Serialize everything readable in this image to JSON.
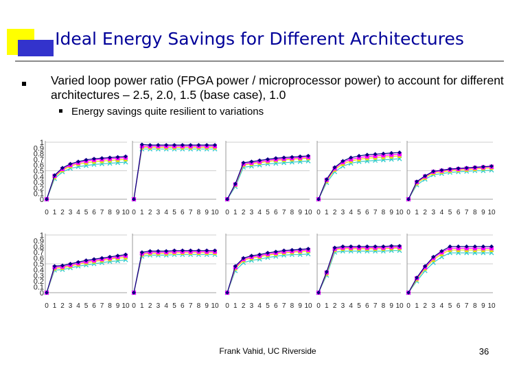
{
  "slide": {
    "title": "Ideal Energy Savings for Different Architectures",
    "bullet1": "Varied loop power ratio (FPGA power / microprocessor power) to account for different architectures – 2.5, 2.0, 1.5 (base case), 1.0",
    "bullet2": "Energy savings quite resilient to variations",
    "footer": "Frank Vahid, UC Riverside",
    "page_number": "36"
  },
  "colors": {
    "title": "#000099",
    "logo_yellow": "#ffff00",
    "logo_blue": "#3333cc",
    "series": [
      "#000080",
      "#ff00ff",
      "#f0e000",
      "#33cccc"
    ],
    "gridline": "#a0a0a0",
    "axis": "#808080"
  },
  "chart_data": [
    {
      "type": "line",
      "panel": "top-1",
      "categories": [
        "0",
        "1",
        "2",
        "3",
        "4",
        "5",
        "6",
        "7",
        "8",
        "9",
        "10"
      ],
      "ylim": [
        0,
        1
      ],
      "ytick_labels": [
        "0",
        "0.1",
        "0.2",
        "0.3",
        "0.4",
        "0.5",
        "0.6",
        "0.7",
        "0.8",
        "0.9",
        "1"
      ],
      "series": [
        {
          "name": "2.5",
          "values": [
            0,
            0.42,
            0.55,
            0.62,
            0.66,
            0.69,
            0.71,
            0.72,
            0.73,
            0.74,
            0.75
          ]
        },
        {
          "name": "2.0",
          "values": [
            0,
            0.41,
            0.53,
            0.6,
            0.64,
            0.67,
            0.69,
            0.7,
            0.71,
            0.72,
            0.73
          ]
        },
        {
          "name": "1.5",
          "values": [
            0,
            0.39,
            0.51,
            0.58,
            0.62,
            0.64,
            0.66,
            0.67,
            0.68,
            0.69,
            0.7
          ]
        },
        {
          "name": "1.0",
          "values": [
            0,
            0.36,
            0.48,
            0.54,
            0.57,
            0.59,
            0.61,
            0.62,
            0.63,
            0.64,
            0.65
          ]
        }
      ]
    },
    {
      "type": "line",
      "panel": "top-2",
      "categories": [
        "0",
        "1",
        "2",
        "3",
        "4",
        "5",
        "6",
        "7",
        "8",
        "9",
        "10"
      ],
      "series": [
        {
          "name": "2.5",
          "values": [
            0,
            0.96,
            0.95,
            0.95,
            0.95,
            0.95,
            0.95,
            0.95,
            0.95,
            0.95,
            0.95
          ]
        },
        {
          "name": "2.0",
          "values": [
            0,
            0.93,
            0.93,
            0.93,
            0.93,
            0.93,
            0.93,
            0.93,
            0.93,
            0.93,
            0.93
          ]
        },
        {
          "name": "1.5",
          "values": [
            0,
            0.91,
            0.91,
            0.91,
            0.91,
            0.91,
            0.91,
            0.91,
            0.91,
            0.91,
            0.91
          ]
        },
        {
          "name": "1.0",
          "values": [
            0,
            0.88,
            0.88,
            0.88,
            0.88,
            0.88,
            0.88,
            0.88,
            0.88,
            0.88,
            0.88
          ]
        }
      ]
    },
    {
      "type": "line",
      "panel": "top-3",
      "categories": [
        "0",
        "1",
        "2",
        "3",
        "4",
        "5",
        "6",
        "7",
        "8",
        "9",
        "10"
      ],
      "series": [
        {
          "name": "2.5",
          "values": [
            0,
            0.27,
            0.64,
            0.66,
            0.68,
            0.7,
            0.72,
            0.73,
            0.74,
            0.75,
            0.76
          ]
        },
        {
          "name": "2.0",
          "values": [
            0,
            0.26,
            0.62,
            0.64,
            0.66,
            0.68,
            0.7,
            0.71,
            0.72,
            0.73,
            0.74
          ]
        },
        {
          "name": "1.5",
          "values": [
            0,
            0.25,
            0.6,
            0.62,
            0.64,
            0.66,
            0.68,
            0.69,
            0.7,
            0.71,
            0.72
          ]
        },
        {
          "name": "1.0",
          "values": [
            0,
            0.22,
            0.56,
            0.58,
            0.6,
            0.62,
            0.63,
            0.64,
            0.65,
            0.66,
            0.67
          ]
        }
      ]
    },
    {
      "type": "line",
      "panel": "top-4",
      "categories": [
        "0",
        "1",
        "2",
        "3",
        "4",
        "5",
        "6",
        "7",
        "8",
        "9",
        "10"
      ],
      "series": [
        {
          "name": "2.5",
          "values": [
            0,
            0.35,
            0.56,
            0.67,
            0.73,
            0.76,
            0.78,
            0.79,
            0.8,
            0.81,
            0.82
          ]
        },
        {
          "name": "2.0",
          "values": [
            0,
            0.34,
            0.54,
            0.65,
            0.7,
            0.73,
            0.75,
            0.76,
            0.77,
            0.78,
            0.79
          ]
        },
        {
          "name": "1.5",
          "values": [
            0,
            0.32,
            0.52,
            0.62,
            0.67,
            0.7,
            0.72,
            0.73,
            0.74,
            0.75,
            0.76
          ]
        },
        {
          "name": "1.0",
          "values": [
            0,
            0.29,
            0.48,
            0.58,
            0.63,
            0.66,
            0.67,
            0.68,
            0.69,
            0.7,
            0.71
          ]
        }
      ]
    },
    {
      "type": "line",
      "panel": "top-5",
      "categories": [
        "0",
        "1",
        "2",
        "3",
        "4",
        "5",
        "6",
        "7",
        "8",
        "9",
        "10"
      ],
      "series": [
        {
          "name": "2.5",
          "values": [
            0,
            0.31,
            0.41,
            0.49,
            0.51,
            0.53,
            0.54,
            0.55,
            0.56,
            0.57,
            0.58
          ]
        },
        {
          "name": "2.0",
          "values": [
            0,
            0.3,
            0.4,
            0.48,
            0.5,
            0.52,
            0.53,
            0.54,
            0.55,
            0.56,
            0.57
          ]
        },
        {
          "name": "1.5",
          "values": [
            0,
            0.28,
            0.38,
            0.46,
            0.48,
            0.5,
            0.51,
            0.52,
            0.53,
            0.54,
            0.55
          ]
        },
        {
          "name": "1.0",
          "values": [
            0,
            0.25,
            0.35,
            0.43,
            0.45,
            0.47,
            0.48,
            0.49,
            0.5,
            0.5,
            0.51
          ]
        }
      ]
    },
    {
      "type": "line",
      "panel": "bottom-1",
      "categories": [
        "0",
        "1",
        "2",
        "3",
        "4",
        "5",
        "6",
        "7",
        "8",
        "9",
        "10"
      ],
      "ylim": [
        0,
        1
      ],
      "ytick_labels": [
        "0",
        "0.1",
        "0.2",
        "0.3",
        "0.4",
        "0.5",
        "0.6",
        "0.7",
        "0.8",
        "0.9",
        "1"
      ],
      "series": [
        {
          "name": "2.5",
          "values": [
            0,
            0.46,
            0.47,
            0.5,
            0.53,
            0.56,
            0.58,
            0.6,
            0.62,
            0.64,
            0.66
          ]
        },
        {
          "name": "2.0",
          "values": [
            0,
            0.44,
            0.45,
            0.48,
            0.51,
            0.54,
            0.56,
            0.58,
            0.6,
            0.62,
            0.64
          ]
        },
        {
          "name": "1.5",
          "values": [
            0,
            0.42,
            0.43,
            0.46,
            0.49,
            0.52,
            0.54,
            0.56,
            0.58,
            0.6,
            0.61
          ]
        },
        {
          "name": "1.0",
          "values": [
            0,
            0.39,
            0.4,
            0.43,
            0.46,
            0.48,
            0.5,
            0.52,
            0.54,
            0.55,
            0.57
          ]
        }
      ]
    },
    {
      "type": "line",
      "panel": "bottom-2",
      "categories": [
        "0",
        "1",
        "2",
        "3",
        "4",
        "5",
        "6",
        "7",
        "8",
        "9",
        "10"
      ],
      "series": [
        {
          "name": "2.5",
          "values": [
            0,
            0.7,
            0.72,
            0.72,
            0.72,
            0.73,
            0.73,
            0.73,
            0.73,
            0.73,
            0.73
          ]
        },
        {
          "name": "2.0",
          "values": [
            0,
            0.68,
            0.7,
            0.7,
            0.7,
            0.71,
            0.71,
            0.71,
            0.71,
            0.71,
            0.71
          ]
        },
        {
          "name": "1.5",
          "values": [
            0,
            0.66,
            0.68,
            0.68,
            0.68,
            0.69,
            0.69,
            0.69,
            0.69,
            0.69,
            0.69
          ]
        },
        {
          "name": "1.0",
          "values": [
            0,
            0.63,
            0.65,
            0.65,
            0.65,
            0.66,
            0.66,
            0.66,
            0.66,
            0.66,
            0.66
          ]
        }
      ]
    },
    {
      "type": "line",
      "panel": "bottom-3",
      "categories": [
        "0",
        "1",
        "2",
        "3",
        "4",
        "5",
        "6",
        "7",
        "8",
        "9",
        "10"
      ],
      "series": [
        {
          "name": "2.5",
          "values": [
            0,
            0.46,
            0.6,
            0.64,
            0.66,
            0.69,
            0.71,
            0.73,
            0.74,
            0.75,
            0.76
          ]
        },
        {
          "name": "2.0",
          "values": [
            0,
            0.44,
            0.58,
            0.62,
            0.64,
            0.67,
            0.69,
            0.71,
            0.72,
            0.73,
            0.74
          ]
        },
        {
          "name": "1.5",
          "values": [
            0,
            0.42,
            0.56,
            0.6,
            0.62,
            0.65,
            0.67,
            0.69,
            0.7,
            0.71,
            0.72
          ]
        },
        {
          "name": "1.0",
          "values": [
            0,
            0.38,
            0.52,
            0.56,
            0.58,
            0.61,
            0.63,
            0.65,
            0.66,
            0.66,
            0.67
          ]
        }
      ]
    },
    {
      "type": "line",
      "panel": "bottom-4",
      "categories": [
        "0",
        "1",
        "2",
        "3",
        "4",
        "5",
        "6",
        "7",
        "8",
        "9",
        "10"
      ],
      "series": [
        {
          "name": "2.5",
          "values": [
            0,
            0.36,
            0.78,
            0.8,
            0.8,
            0.8,
            0.8,
            0.8,
            0.8,
            0.81,
            0.81
          ]
        },
        {
          "name": "2.0",
          "values": [
            0,
            0.35,
            0.76,
            0.78,
            0.78,
            0.78,
            0.78,
            0.78,
            0.78,
            0.79,
            0.79
          ]
        },
        {
          "name": "1.5",
          "values": [
            0,
            0.33,
            0.74,
            0.76,
            0.76,
            0.76,
            0.76,
            0.76,
            0.76,
            0.77,
            0.77
          ]
        },
        {
          "name": "1.0",
          "values": [
            0,
            0.3,
            0.7,
            0.72,
            0.72,
            0.72,
            0.72,
            0.72,
            0.72,
            0.73,
            0.73
          ]
        }
      ]
    },
    {
      "type": "line",
      "panel": "bottom-5",
      "categories": [
        "0",
        "1",
        "2",
        "3",
        "4",
        "5",
        "6",
        "7",
        "8",
        "9",
        "10"
      ],
      "series": [
        {
          "name": "2.5",
          "values": [
            0,
            0.26,
            0.46,
            0.62,
            0.72,
            0.8,
            0.8,
            0.8,
            0.8,
            0.8,
            0.8
          ]
        },
        {
          "name": "2.0",
          "values": [
            0,
            0.25,
            0.44,
            0.6,
            0.7,
            0.77,
            0.77,
            0.77,
            0.77,
            0.77,
            0.77
          ]
        },
        {
          "name": "1.5",
          "values": [
            0,
            0.23,
            0.42,
            0.57,
            0.67,
            0.74,
            0.74,
            0.74,
            0.74,
            0.74,
            0.74
          ]
        },
        {
          "name": "1.0",
          "values": [
            0,
            0.2,
            0.38,
            0.52,
            0.62,
            0.69,
            0.69,
            0.69,
            0.69,
            0.69,
            0.69
          ]
        }
      ]
    }
  ]
}
